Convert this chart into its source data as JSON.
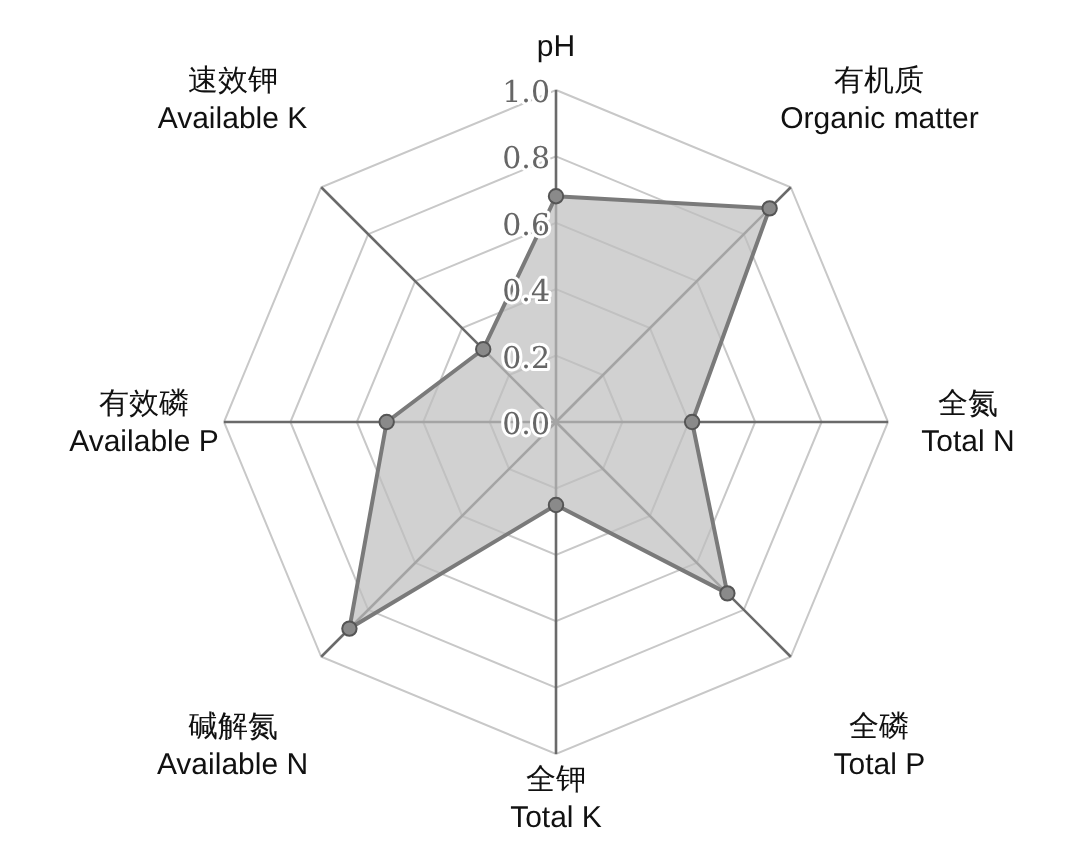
{
  "chart_data": {
    "type": "radar",
    "categories": [
      "pH",
      "有机质\nOrganic matter",
      "全氮\nTotal N",
      "全磷\nTotal P",
      "全钾\nTotal K",
      "碱解氮\nAvailable N",
      "有效磷\nAvailable P",
      "速效钾\nAvailable K"
    ],
    "series": [
      {
        "color": "#7a7a7a",
        "values": [
          0.68,
          0.91,
          0.41,
          0.73,
          0.25,
          0.88,
          0.51,
          0.31
        ]
      }
    ],
    "ylim": [
      0,
      1
    ],
    "yticks": [
      {
        "value": 0,
        "label": "0.0"
      },
      {
        "value": 0.2,
        "label": "0.2"
      },
      {
        "value": 0.4,
        "label": "0.4"
      },
      {
        "value": 0.6,
        "label": "0.6"
      },
      {
        "value": 0.8,
        "label": "0.8"
      },
      {
        "value": 1,
        "label": "1.0"
      }
    ],
    "grid": true,
    "marker": "circle"
  }
}
